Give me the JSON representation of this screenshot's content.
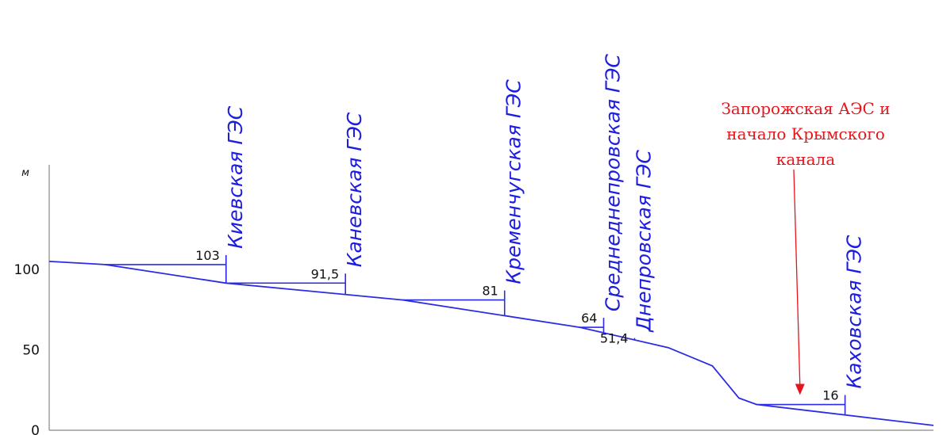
{
  "chart_data": {
    "type": "line",
    "ylabel": "м",
    "ylim": [
      0,
      100
    ],
    "yticks": [
      0,
      50,
      100
    ],
    "grid": false,
    "river_color": "#2b2be6",
    "river_profile": {
      "x": [
        0,
        6.3,
        20,
        40,
        60,
        70,
        75,
        78,
        80,
        100
      ],
      "y": [
        105,
        103,
        91.5,
        81,
        64,
        51.4,
        40,
        20,
        16,
        3
      ]
    },
    "dams": [
      {
        "name": "Киевская ГЭС",
        "x": 20,
        "level": 103,
        "label": "103"
      },
      {
        "name": "Каневская ГЭС",
        "x": 33.5,
        "level": 91.5,
        "label": "91,5"
      },
      {
        "name": "Кременчугская ГЭС",
        "x": 51.5,
        "level": 81,
        "label": "81"
      },
      {
        "name": "Среднеднепровская ГЭС",
        "x": 62.7,
        "level": 64,
        "label": "64"
      },
      {
        "name": "Днепровская ГЭС",
        "x": 66.2,
        "level": 51.4,
        "label": "51,4"
      },
      {
        "name": "Каховская ГЭС",
        "x": 90,
        "level": 16,
        "label": "16"
      }
    ],
    "annotation": {
      "lines": [
        "Запорожская АЭС и",
        "начало Крымского",
        "канала"
      ],
      "color": "#e8141c",
      "target_x": 84.9,
      "target_y": 16
    }
  }
}
